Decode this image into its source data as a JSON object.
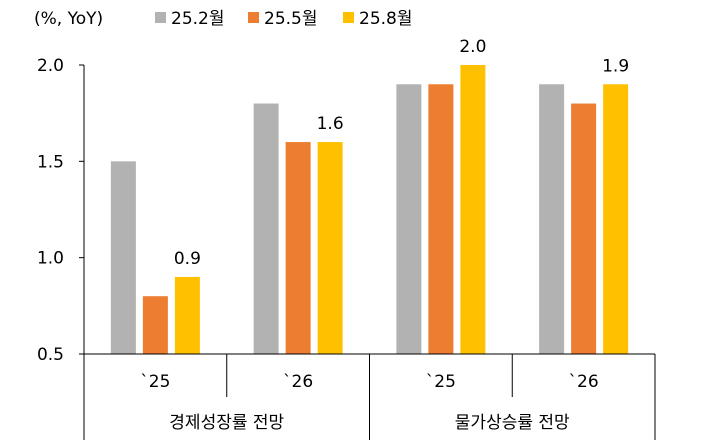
{
  "chart_data": {
    "type": "bar",
    "unit_label": "(%, YoY)",
    "ylim": [
      0.5,
      2.0
    ],
    "yticks": [
      "0.5",
      "1.0",
      "1.5",
      "2.0"
    ],
    "ytick_values": [
      0.5,
      1.0,
      1.5,
      2.0
    ],
    "categories": [
      "`25",
      "`26",
      "`25",
      "`26"
    ],
    "groups": [
      {
        "label": "경제성장률 전망",
        "categories": [
          0,
          1
        ]
      },
      {
        "label": "물가상승률 전망",
        "categories": [
          2,
          3
        ]
      }
    ],
    "series": [
      {
        "name": "25.2월",
        "color": "#b2b2b2",
        "values": [
          1.5,
          1.8,
          1.9,
          1.9
        ]
      },
      {
        "name": "25.5월",
        "color": "#ed7d31",
        "values": [
          0.8,
          1.6,
          1.9,
          1.8
        ]
      },
      {
        "name": "25.8월",
        "color": "#ffc000",
        "values": [
          0.9,
          1.6,
          2.0,
          1.9
        ]
      }
    ],
    "data_labels": [
      {
        "category": 0,
        "series": 2,
        "text": "0.9"
      },
      {
        "category": 1,
        "series": 2,
        "text": "1.6"
      },
      {
        "category": 2,
        "series": 2,
        "text": "2.0"
      },
      {
        "category": 3,
        "series": 2,
        "text": "1.9"
      }
    ],
    "legend_position": "top",
    "grid": false
  }
}
